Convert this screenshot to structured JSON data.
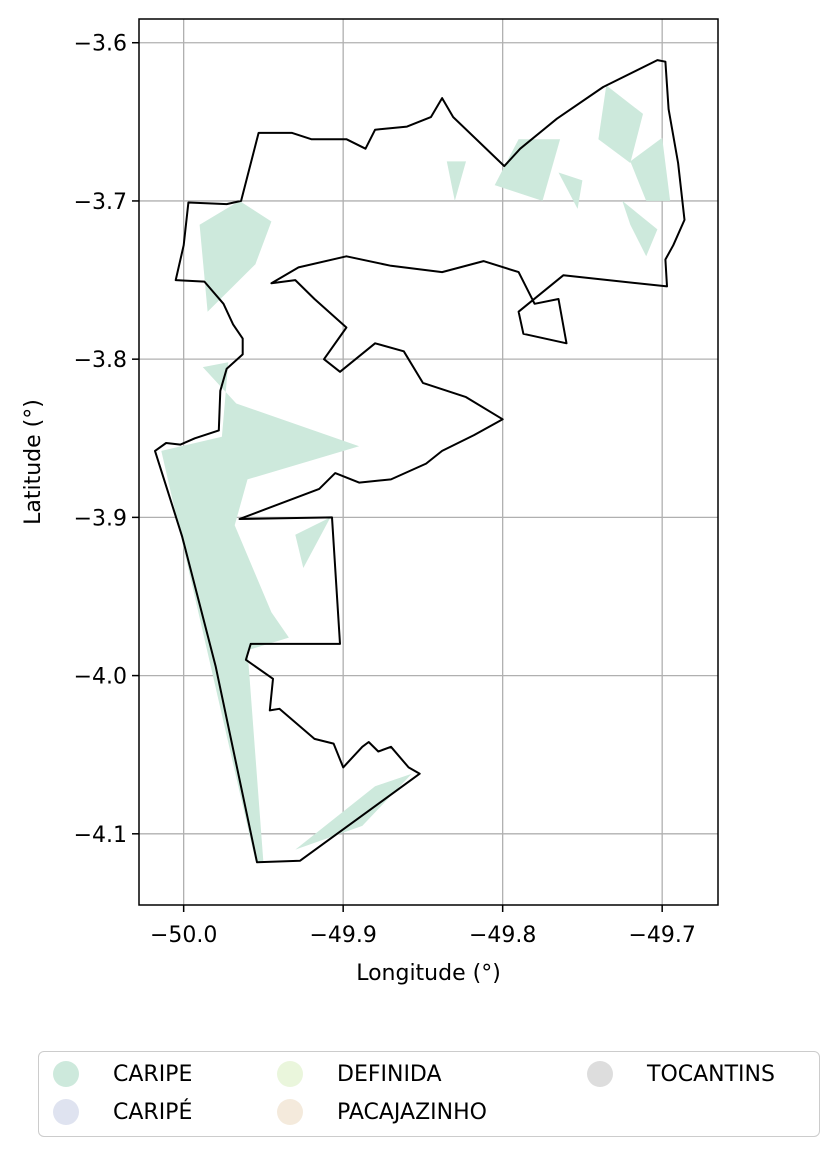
{
  "chart_data": {
    "type": "map",
    "xlabel": "Longitude (°)",
    "ylabel": "Latitude (°)",
    "xlim": [
      -50.028,
      -49.665
    ],
    "ylim": [
      -4.145,
      -3.585
    ],
    "xticks": [
      -50.0,
      -49.9,
      -49.8,
      -49.7
    ],
    "xtick_labels": [
      "−50.0",
      "−49.9",
      "−49.8",
      "−49.7"
    ],
    "yticks": [
      -3.6,
      -3.7,
      -3.8,
      -3.9,
      -4.0,
      -4.1
    ],
    "ytick_labels": [
      "−3.6",
      "−3.7",
      "−3.8",
      "−3.9",
      "−4.0",
      "−4.1"
    ],
    "grid": true,
    "legend_position": "bottom",
    "legend": [
      {
        "label": "CARIPE",
        "color": "#cde9dc"
      },
      {
        "label": "CARIPÉ",
        "color": "#dfe3f0"
      },
      {
        "label": "DEFINIDA",
        "color": "#eaf6dc"
      },
      {
        "label": "PACAJAZINHO",
        "color": "#f4eadc"
      },
      {
        "label": "TOCANTINS",
        "color": "#dddddd"
      }
    ],
    "boundary_outline": [
      [
        -49.954,
        -4.118
      ],
      [
        -49.927,
        -4.117
      ],
      [
        -49.852,
        -4.062
      ],
      [
        -49.859,
        -4.058
      ],
      [
        -49.87,
        -4.045
      ],
      [
        -49.878,
        -4.048
      ],
      [
        -49.884,
        -4.042
      ],
      [
        -49.888,
        -4.045
      ],
      [
        -49.9,
        -4.058
      ],
      [
        -49.906,
        -4.043
      ],
      [
        -49.918,
        -4.04
      ],
      [
        -49.94,
        -4.021
      ],
      [
        -49.946,
        -4.022
      ],
      [
        -49.944,
        -4.002
      ],
      [
        -49.961,
        -3.99
      ],
      [
        -49.958,
        -3.98
      ],
      [
        -49.902,
        -3.98
      ],
      [
        -49.907,
        -3.9
      ],
      [
        -49.965,
        -3.901
      ],
      [
        -49.915,
        -3.882
      ],
      [
        -49.905,
        -3.872
      ],
      [
        -49.89,
        -3.878
      ],
      [
        -49.87,
        -3.876
      ],
      [
        -49.848,
        -3.866
      ],
      [
        -49.838,
        -3.858
      ],
      [
        -49.818,
        -3.848
      ],
      [
        -49.8,
        -3.838
      ],
      [
        -49.823,
        -3.824
      ],
      [
        -49.85,
        -3.815
      ],
      [
        -49.862,
        -3.795
      ],
      [
        -49.88,
        -3.79
      ],
      [
        -49.902,
        -3.808
      ],
      [
        -49.912,
        -3.8
      ],
      [
        -49.898,
        -3.78
      ],
      [
        -49.918,
        -3.762
      ],
      [
        -49.93,
        -3.75
      ],
      [
        -49.945,
        -3.752
      ],
      [
        -49.928,
        -3.742
      ],
      [
        -49.898,
        -3.735
      ],
      [
        -49.87,
        -3.741
      ],
      [
        -49.838,
        -3.745
      ],
      [
        -49.812,
        -3.738
      ],
      [
        -49.79,
        -3.745
      ],
      [
        -49.78,
        -3.765
      ],
      [
        -49.765,
        -3.762
      ],
      [
        -49.76,
        -3.79
      ],
      [
        -49.787,
        -3.784
      ],
      [
        -49.79,
        -3.77
      ],
      [
        -49.762,
        -3.747
      ],
      [
        -49.697,
        -3.754
      ],
      [
        -49.698,
        -3.737
      ],
      [
        -49.693,
        -3.728
      ],
      [
        -49.686,
        -3.712
      ],
      [
        -49.69,
        -3.676
      ],
      [
        -49.696,
        -3.642
      ],
      [
        -49.698,
        -3.612
      ],
      [
        -49.703,
        -3.611
      ],
      [
        -49.737,
        -3.628
      ],
      [
        -49.766,
        -3.648
      ],
      [
        -49.789,
        -3.667
      ],
      [
        -49.799,
        -3.678
      ],
      [
        -49.831,
        -3.647
      ],
      [
        -49.838,
        -3.635
      ],
      [
        -49.845,
        -3.647
      ],
      [
        -49.86,
        -3.653
      ],
      [
        -49.88,
        -3.655
      ],
      [
        -49.886,
        -3.667
      ],
      [
        -49.898,
        -3.661
      ],
      [
        -49.92,
        -3.661
      ],
      [
        -49.932,
        -3.657
      ],
      [
        -49.953,
        -3.657
      ],
      [
        -49.964,
        -3.7
      ],
      [
        -49.973,
        -3.702
      ],
      [
        -49.997,
        -3.701
      ],
      [
        -50.0,
        -3.728
      ],
      [
        -50.005,
        -3.75
      ],
      [
        -49.987,
        -3.751
      ],
      [
        -49.975,
        -3.765
      ],
      [
        -49.969,
        -3.778
      ],
      [
        -49.963,
        -3.787
      ],
      [
        -49.963,
        -3.797
      ],
      [
        -49.973,
        -3.806
      ],
      [
        -49.977,
        -3.82
      ],
      [
        -49.978,
        -3.845
      ],
      [
        -49.993,
        -3.85
      ],
      [
        -50.002,
        -3.854
      ],
      [
        -50.011,
        -3.853
      ],
      [
        -50.018,
        -3.858
      ],
      [
        -50.001,
        -3.912
      ],
      [
        -49.98,
        -3.994
      ]
    ],
    "filled_regions_CARIPE": [
      [
        [
          -50.014,
          -3.858
        ],
        [
          -49.976,
          -3.849
        ],
        [
          -49.972,
          -3.802
        ],
        [
          -49.988,
          -3.805
        ],
        [
          -49.967,
          -3.828
        ],
        [
          -49.89,
          -3.855
        ],
        [
          -49.96,
          -3.876
        ],
        [
          -49.968,
          -3.905
        ],
        [
          -49.945,
          -3.96
        ],
        [
          -49.934,
          -3.976
        ],
        [
          -49.96,
          -3.984
        ],
        [
          -49.95,
          -4.118
        ],
        [
          -49.955,
          -4.117
        ]
      ],
      [
        [
          -49.99,
          -3.715
        ],
        [
          -49.965,
          -3.7
        ],
        [
          -49.945,
          -3.713
        ],
        [
          -49.955,
          -3.74
        ],
        [
          -49.985,
          -3.77
        ]
      ],
      [
        [
          -49.93,
          -3.911
        ],
        [
          -49.908,
          -3.9
        ],
        [
          -49.925,
          -3.932
        ]
      ],
      [
        [
          -49.93,
          -4.11
        ],
        [
          -49.88,
          -4.07
        ],
        [
          -49.857,
          -4.062
        ],
        [
          -49.888,
          -4.095
        ]
      ],
      [
        [
          -49.83,
          -3.7
        ],
        [
          -49.835,
          -3.675
        ],
        [
          -49.823,
          -3.675
        ]
      ],
      [
        [
          -49.805,
          -3.69
        ],
        [
          -49.79,
          -3.661
        ],
        [
          -49.764,
          -3.661
        ],
        [
          -49.775,
          -3.7
        ]
      ],
      [
        [
          -49.765,
          -3.682
        ],
        [
          -49.75,
          -3.687
        ],
        [
          -49.753,
          -3.705
        ]
      ],
      [
        [
          -49.735,
          -3.627
        ],
        [
          -49.712,
          -3.645
        ],
        [
          -49.72,
          -3.676
        ],
        [
          -49.74,
          -3.661
        ]
      ],
      [
        [
          -49.71,
          -3.7
        ],
        [
          -49.72,
          -3.675
        ],
        [
          -49.7,
          -3.66
        ],
        [
          -49.695,
          -3.7
        ]
      ],
      [
        [
          -49.71,
          -3.735
        ],
        [
          -49.72,
          -3.715
        ],
        [
          -49.725,
          -3.7
        ],
        [
          -49.703,
          -3.718
        ]
      ]
    ]
  }
}
